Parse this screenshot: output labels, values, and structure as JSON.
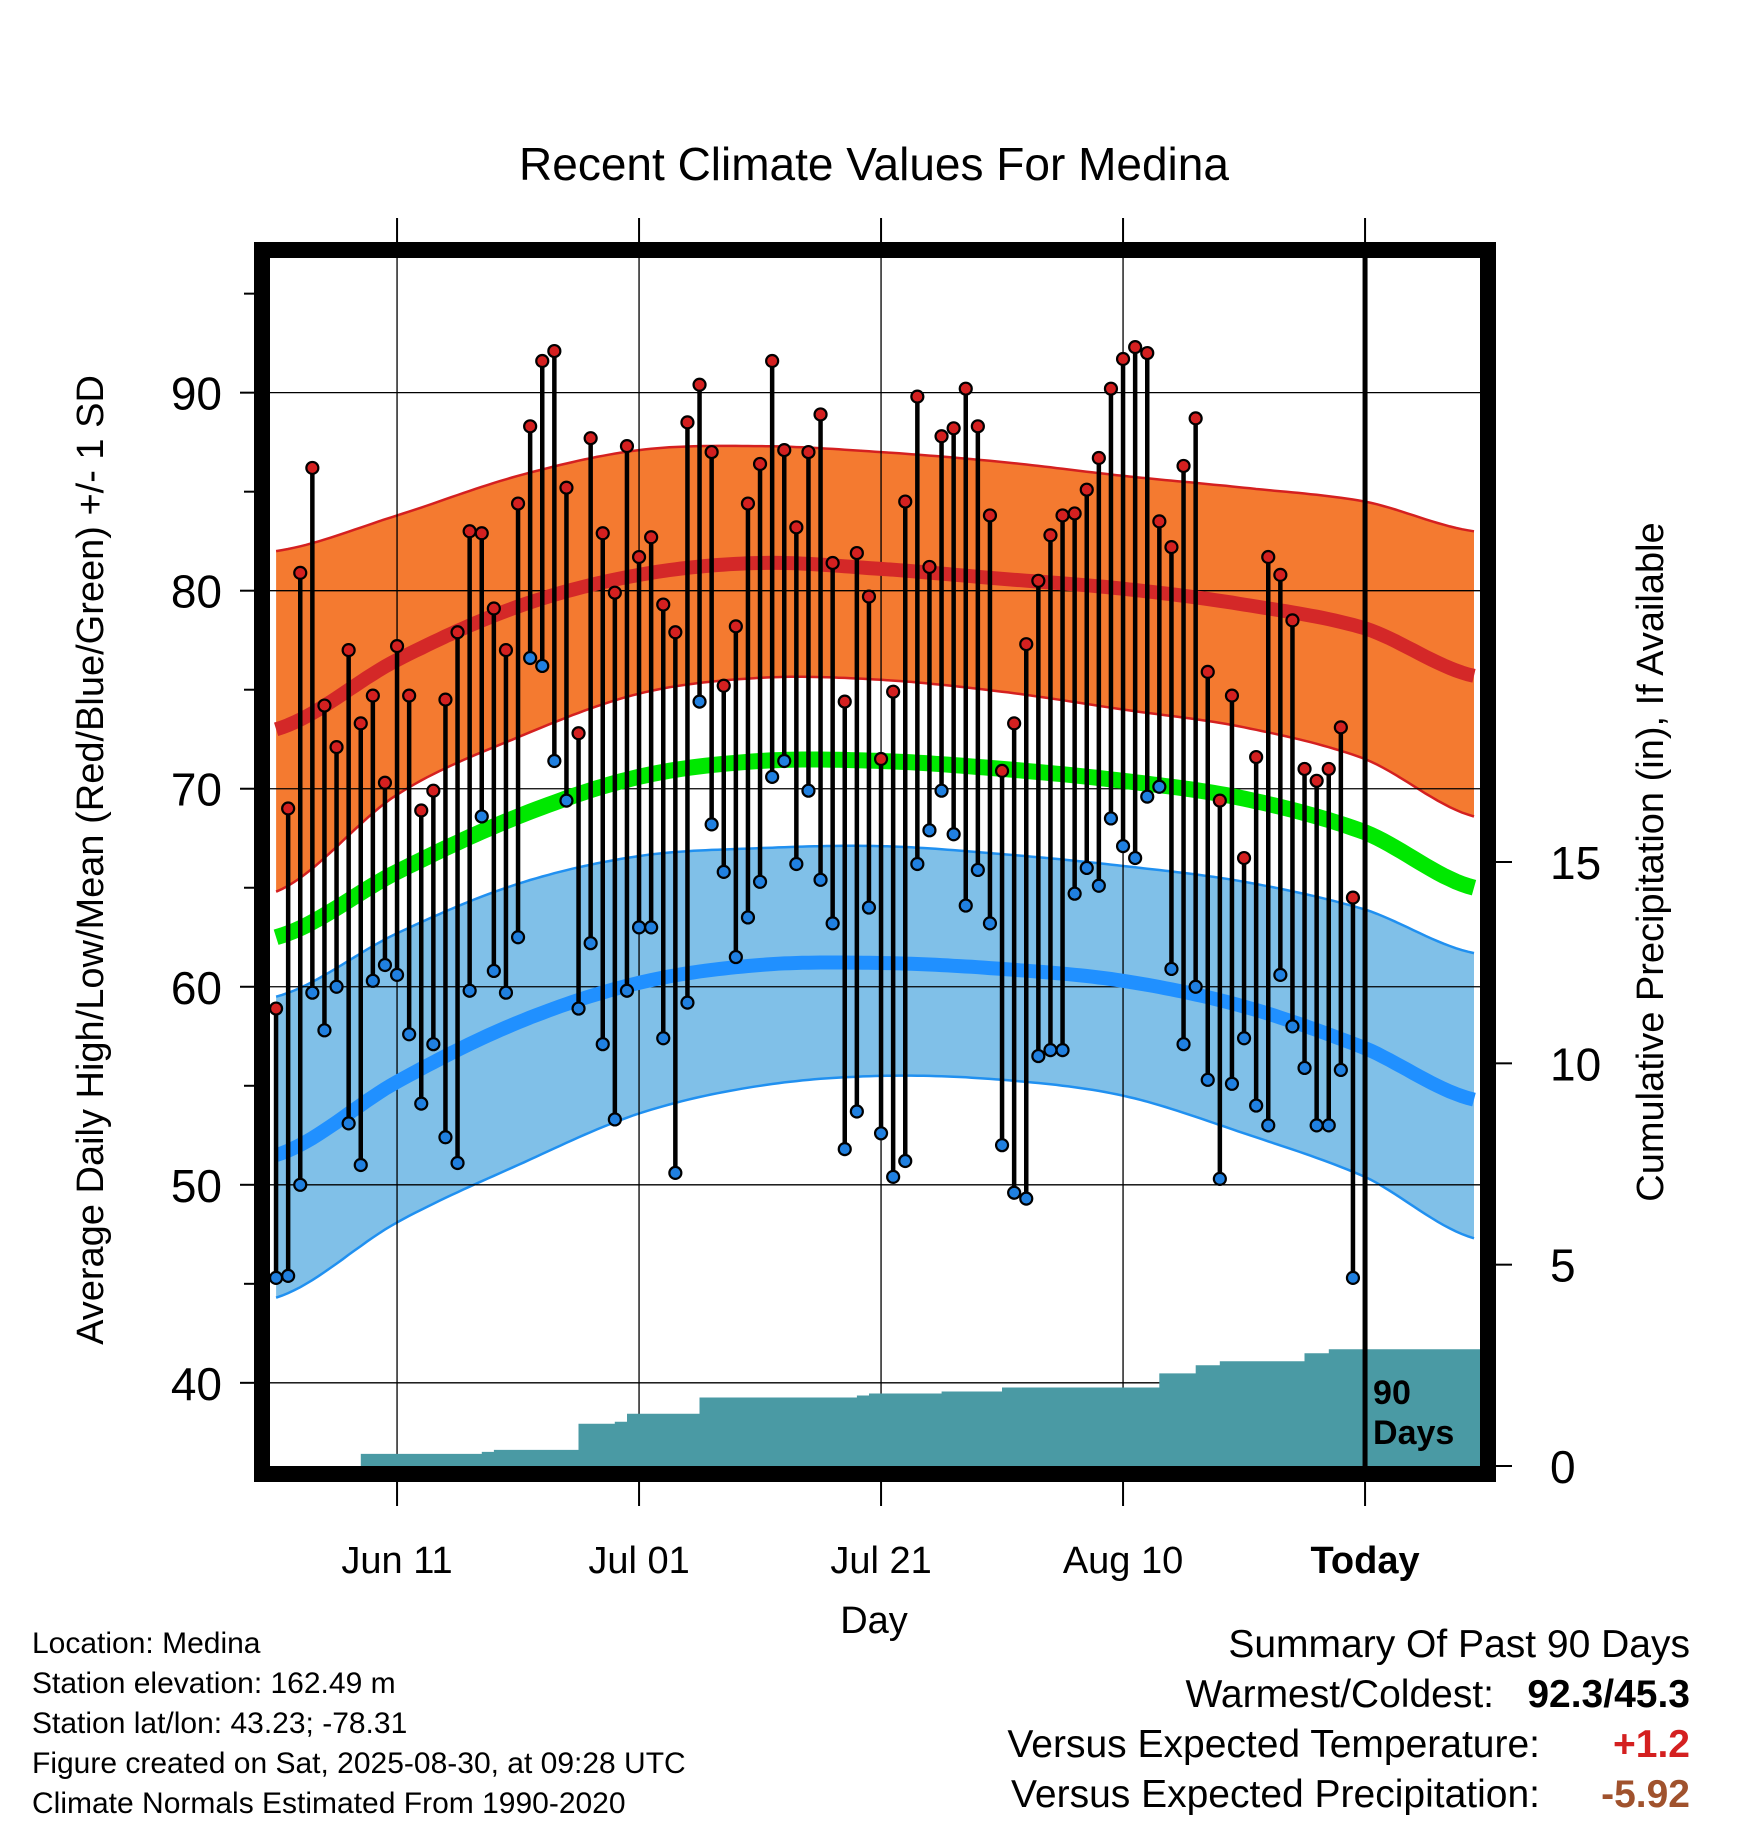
{
  "chart_data": {
    "type": "line",
    "title": "Recent Climate Values For Medina",
    "xlabel": "Day",
    "ylabel": "Average Daily High/Low/Mean (Red/Blue/Green) +/- 1 SD",
    "y2label": "Cumulative Precipitation (in), If Available",
    "x_tick_labels": [
      "Jun 11",
      "Jul 01",
      "Jul 21",
      "Aug 10",
      "Today"
    ],
    "x_tick_days": [
      10,
      30,
      50,
      70,
      90
    ],
    "x_range": [
      -0.5,
      99.5
    ],
    "ylim": [
      35.8,
      96.8
    ],
    "y_ticks": [
      40,
      50,
      60,
      70,
      80,
      90
    ],
    "y2lim": [
      0,
      30
    ],
    "y2_ticks": [
      0,
      5,
      10,
      15
    ],
    "today_label": "90 Days",
    "grid": true,
    "normals": {
      "days": [
        0,
        10,
        20,
        30,
        40,
        50,
        60,
        70,
        80,
        90,
        99
      ],
      "high_mean": [
        73,
        76.5,
        79.2,
        80.8,
        81.4,
        81.1,
        80.6,
        80.1,
        79.3,
        78.1,
        75.7
      ],
      "high_upper": [
        82,
        83.8,
        85.8,
        87.1,
        87.3,
        87.0,
        86.5,
        85.8,
        85.2,
        84.5,
        83.0
      ],
      "high_lower": [
        64.8,
        69.7,
        72.6,
        74.8,
        75.6,
        75.5,
        74.9,
        74.0,
        73.1,
        71.5,
        68.6
      ],
      "mean": [
        62.5,
        65.8,
        68.6,
        70.6,
        71.4,
        71.4,
        71.0,
        70.4,
        69.5,
        67.8,
        65.0
      ],
      "low_mean": [
        51.5,
        55.2,
        58.2,
        60.2,
        61.1,
        61.2,
        60.9,
        60.3,
        59.0,
        56.9,
        54.3
      ],
      "low_upper": [
        59.5,
        62.7,
        65.2,
        66.6,
        67.0,
        67.1,
        66.7,
        66.1,
        65.3,
        63.9,
        61.7
      ],
      "low_lower": [
        44.3,
        48.1,
        51.0,
        53.6,
        55.0,
        55.5,
        55.3,
        54.5,
        52.6,
        50.4,
        47.3
      ]
    },
    "series": [
      {
        "name": "High",
        "color": "#d42020",
        "values": [
          58.9,
          69.0,
          80.9,
          86.2,
          74.2,
          72.1,
          77.0,
          73.3,
          74.7,
          70.3,
          77.2,
          74.7,
          68.9,
          69.9,
          74.5,
          77.9,
          83.0,
          82.9,
          79.1,
          77.0,
          84.4,
          88.3,
          91.6,
          92.1,
          85.2,
          72.8,
          87.7,
          82.9,
          79.9,
          87.3,
          81.7,
          82.7,
          79.3,
          77.9,
          88.5,
          90.4,
          87.0,
          75.2,
          78.2,
          84.4,
          86.4,
          91.6,
          87.1,
          83.2,
          87.0,
          88.9,
          81.4,
          74.4,
          81.9,
          79.7,
          71.5,
          74.9,
          84.5,
          89.8,
          81.2,
          87.8,
          88.2,
          90.2,
          88.3,
          83.8,
          70.9,
          73.3,
          77.3,
          80.5,
          82.8,
          83.8,
          83.9,
          85.1,
          86.7,
          90.2,
          91.7,
          92.3,
          92.0,
          83.5,
          82.2,
          86.3,
          88.7,
          75.9,
          69.4,
          74.7,
          66.5,
          71.6,
          81.7,
          80.8,
          78.5,
          71.0,
          70.4,
          71.0,
          73.1,
          64.5
        ]
      },
      {
        "name": "Low",
        "color": "#2080e0",
        "values": [
          45.3,
          45.4,
          50.0,
          59.7,
          57.8,
          60.0,
          53.1,
          51.0,
          60.3,
          61.1,
          60.6,
          57.6,
          54.1,
          57.1,
          52.4,
          51.1,
          59.8,
          68.6,
          60.8,
          59.7,
          62.5,
          76.6,
          76.2,
          71.4,
          69.4,
          58.9,
          62.2,
          57.1,
          53.3,
          59.8,
          63.0,
          63.0,
          57.4,
          50.6,
          59.2,
          74.4,
          68.2,
          65.8,
          61.5,
          63.5,
          65.3,
          70.6,
          71.4,
          66.2,
          69.9,
          65.4,
          63.2,
          51.8,
          53.7,
          64.0,
          52.6,
          50.4,
          51.2,
          66.2,
          67.9,
          69.9,
          67.7,
          64.1,
          65.9,
          63.2,
          52.0,
          49.6,
          49.3,
          56.5,
          56.8,
          56.8,
          64.7,
          66.0,
          65.1,
          68.5,
          67.1,
          66.5,
          69.6,
          70.1,
          60.9,
          57.1,
          60.0,
          55.3,
          50.3,
          55.1,
          57.4,
          54.0,
          53.0,
          60.6,
          58.0,
          55.9,
          53.0,
          53.0,
          55.8,
          45.3
        ]
      },
      {
        "name": "Cumulative Precipitation",
        "color": "#4a9aa4",
        "values": [
          0,
          0,
          0,
          0,
          0,
          0,
          0,
          0.3,
          0.3,
          0.3,
          0.3,
          0.3,
          0.3,
          0.3,
          0.3,
          0.3,
          0.3,
          0.35,
          0.4,
          0.4,
          0.4,
          0.4,
          0.4,
          0.4,
          0.4,
          1.05,
          1.05,
          1.05,
          1.1,
          1.3,
          1.3,
          1.3,
          1.3,
          1.3,
          1.3,
          1.7,
          1.7,
          1.7,
          1.7,
          1.7,
          1.7,
          1.7,
          1.7,
          1.7,
          1.7,
          1.7,
          1.7,
          1.7,
          1.75,
          1.8,
          1.8,
          1.8,
          1.8,
          1.8,
          1.8,
          1.85,
          1.85,
          1.85,
          1.85,
          1.85,
          1.95,
          1.95,
          1.95,
          1.95,
          1.95,
          1.95,
          1.95,
          1.95,
          1.95,
          1.95,
          1.95,
          1.95,
          1.95,
          2.3,
          2.3,
          2.3,
          2.5,
          2.5,
          2.6,
          2.6,
          2.6,
          2.6,
          2.6,
          2.6,
          2.6,
          2.8,
          2.8,
          2.9,
          2.9,
          2.9,
          2.9,
          2.9,
          2.9,
          2.9,
          2.9,
          2.9,
          2.9,
          2.9,
          2.9,
          2.9
        ]
      }
    ]
  },
  "footer": {
    "location": "Location: Medina",
    "elevation": "Station elevation: 162.49 m",
    "latlon": "Station lat/lon: 43.23; -78.31",
    "created": "Figure created on Sat, 2025-08-30, at 09:28 UTC",
    "normals": "Climate Normals Estimated From 1990-2020"
  },
  "summary": {
    "title": "Summary Of Past 90 Days",
    "warmest_label": "Warmest/Coldest:",
    "warmest_value": "92.3/45.3",
    "temp_label": "Versus Expected Temperature:",
    "temp_value": "+1.2",
    "temp_color": "#d42020",
    "precip_label": "Versus Expected Precipitation:",
    "precip_value": "-5.92",
    "precip_color": "#a0522d"
  }
}
